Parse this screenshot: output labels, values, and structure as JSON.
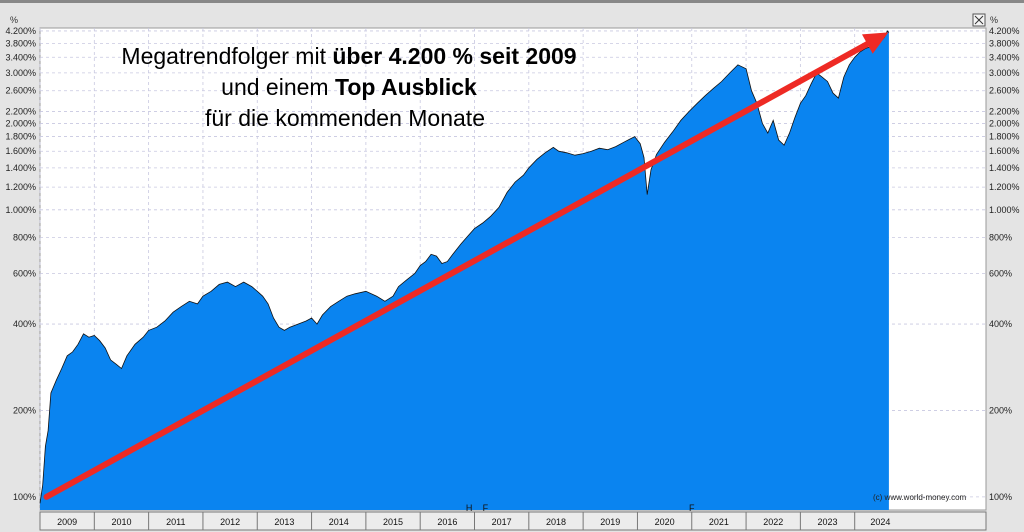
{
  "chart_data": {
    "type": "area",
    "y_scale": "log",
    "ylim": [
      90,
      4300
    ],
    "y_unit": "%",
    "y_ticks": [
      100,
      200,
      400,
      600,
      800,
      1000,
      1200,
      1400,
      1600,
      1800,
      2000,
      2200,
      2600,
      3000,
      3400,
      3800,
      4200
    ],
    "y_tick_labels": [
      "100%",
      "200%",
      "400%",
      "600%",
      "800%",
      "1.000%",
      "1.200%",
      "1.400%",
      "1.600%",
      "1.800%",
      "2.000%",
      "2.200%",
      "2.600%",
      "3.000%",
      "3.400%",
      "3.800%",
      "4.200%"
    ],
    "x_start": 2009.0,
    "x_end": 2024.65,
    "years": [
      "2009",
      "2010",
      "2011",
      "2012",
      "2013",
      "2014",
      "2015",
      "2016",
      "2017",
      "2018",
      "2019",
      "2020",
      "2021",
      "2022",
      "2023",
      "2024"
    ],
    "markers": [
      {
        "text": "H",
        "x": 2016.9
      },
      {
        "text": "F",
        "x": 2017.2
      },
      {
        "text": "F",
        "x": 2021.0
      }
    ],
    "series": [
      {
        "values": [
          [
            2009.0,
            95
          ],
          [
            2009.05,
            110
          ],
          [
            2009.1,
            150
          ],
          [
            2009.15,
            170
          ],
          [
            2009.2,
            230
          ],
          [
            2009.3,
            255
          ],
          [
            2009.4,
            280
          ],
          [
            2009.5,
            310
          ],
          [
            2009.6,
            320
          ],
          [
            2009.7,
            340
          ],
          [
            2009.8,
            370
          ],
          [
            2009.9,
            360
          ],
          [
            2010.0,
            365
          ],
          [
            2010.1,
            350
          ],
          [
            2010.2,
            330
          ],
          [
            2010.3,
            300
          ],
          [
            2010.4,
            290
          ],
          [
            2010.5,
            280
          ],
          [
            2010.6,
            310
          ],
          [
            2010.75,
            340
          ],
          [
            2010.9,
            360
          ],
          [
            2011.0,
            380
          ],
          [
            2011.15,
            390
          ],
          [
            2011.3,
            410
          ],
          [
            2011.45,
            440
          ],
          [
            2011.6,
            460
          ],
          [
            2011.75,
            480
          ],
          [
            2011.9,
            470
          ],
          [
            2012.0,
            500
          ],
          [
            2012.15,
            520
          ],
          [
            2012.3,
            550
          ],
          [
            2012.45,
            560
          ],
          [
            2012.6,
            540
          ],
          [
            2012.75,
            560
          ],
          [
            2012.9,
            540
          ],
          [
            2013.0,
            520
          ],
          [
            2013.1,
            500
          ],
          [
            2013.2,
            470
          ],
          [
            2013.3,
            420
          ],
          [
            2013.4,
            390
          ],
          [
            2013.5,
            380
          ],
          [
            2013.6,
            390
          ],
          [
            2013.75,
            400
          ],
          [
            2013.9,
            410
          ],
          [
            2014.0,
            420
          ],
          [
            2014.1,
            400
          ],
          [
            2014.2,
            430
          ],
          [
            2014.35,
            460
          ],
          [
            2014.5,
            480
          ],
          [
            2014.65,
            500
          ],
          [
            2014.8,
            510
          ],
          [
            2015.0,
            520
          ],
          [
            2015.2,
            500
          ],
          [
            2015.35,
            480
          ],
          [
            2015.5,
            500
          ],
          [
            2015.6,
            540
          ],
          [
            2015.75,
            570
          ],
          [
            2015.9,
            600
          ],
          [
            2016.0,
            640
          ],
          [
            2016.1,
            660
          ],
          [
            2016.2,
            700
          ],
          [
            2016.3,
            690
          ],
          [
            2016.4,
            650
          ],
          [
            2016.5,
            660
          ],
          [
            2016.6,
            700
          ],
          [
            2016.75,
            760
          ],
          [
            2016.9,
            820
          ],
          [
            2017.0,
            860
          ],
          [
            2017.15,
            900
          ],
          [
            2017.3,
            950
          ],
          [
            2017.45,
            1020
          ],
          [
            2017.6,
            1150
          ],
          [
            2017.75,
            1250
          ],
          [
            2017.9,
            1320
          ],
          [
            2018.0,
            1400
          ],
          [
            2018.15,
            1500
          ],
          [
            2018.3,
            1580
          ],
          [
            2018.45,
            1650
          ],
          [
            2018.55,
            1600
          ],
          [
            2018.7,
            1580
          ],
          [
            2018.85,
            1550
          ],
          [
            2019.0,
            1570
          ],
          [
            2019.15,
            1600
          ],
          [
            2019.3,
            1640
          ],
          [
            2019.45,
            1620
          ],
          [
            2019.6,
            1660
          ],
          [
            2019.75,
            1720
          ],
          [
            2019.85,
            1760
          ],
          [
            2019.95,
            1800
          ],
          [
            2020.05,
            1700
          ],
          [
            2020.12,
            1520
          ],
          [
            2020.18,
            1130
          ],
          [
            2020.25,
            1380
          ],
          [
            2020.35,
            1560
          ],
          [
            2020.5,
            1720
          ],
          [
            2020.65,
            1870
          ],
          [
            2020.8,
            2050
          ],
          [
            2020.95,
            2200
          ],
          [
            2021.1,
            2350
          ],
          [
            2021.25,
            2500
          ],
          [
            2021.4,
            2650
          ],
          [
            2021.55,
            2800
          ],
          [
            2021.7,
            3000
          ],
          [
            2021.85,
            3200
          ],
          [
            2022.0,
            3100
          ],
          [
            2022.1,
            2600
          ],
          [
            2022.2,
            2350
          ],
          [
            2022.3,
            2000
          ],
          [
            2022.4,
            1850
          ],
          [
            2022.5,
            2050
          ],
          [
            2022.6,
            1750
          ],
          [
            2022.7,
            1680
          ],
          [
            2022.8,
            1850
          ],
          [
            2022.9,
            2100
          ],
          [
            2023.0,
            2350
          ],
          [
            2023.1,
            2500
          ],
          [
            2023.2,
            2750
          ],
          [
            2023.3,
            3000
          ],
          [
            2023.4,
            2900
          ],
          [
            2023.5,
            2800
          ],
          [
            2023.6,
            2550
          ],
          [
            2023.7,
            2450
          ],
          [
            2023.8,
            2900
          ],
          [
            2023.9,
            3200
          ],
          [
            2024.0,
            3400
          ],
          [
            2024.1,
            3550
          ],
          [
            2024.2,
            3650
          ],
          [
            2024.3,
            3700
          ],
          [
            2024.4,
            3750
          ],
          [
            2024.5,
            3900
          ],
          [
            2024.55,
            4000
          ],
          [
            2024.6,
            4200
          ],
          [
            2024.63,
            4150
          ]
        ]
      }
    ],
    "trend_arrow": {
      "from": [
        2009.12,
        100
      ],
      "to": [
        2024.62,
        4150
      ]
    },
    "annotation": {
      "line1_normal": "Megatrendfolger mit ",
      "line1_bold": "über 4.200 % seit 2009",
      "line2_normal": "und einem ",
      "line2_bold": "Top Ausblick",
      "line3_normal": "für die kommenden Monate"
    },
    "y_axis_title": "%",
    "copyright": "(c) www.world-money.com"
  }
}
